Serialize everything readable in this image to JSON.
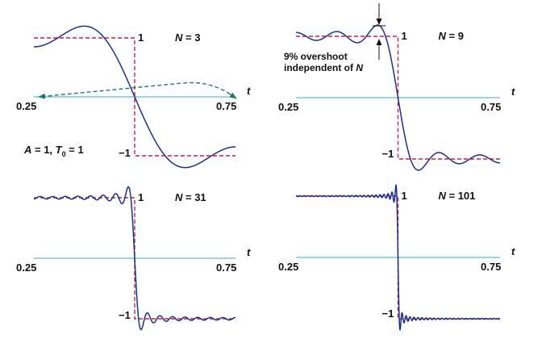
{
  "colors": {
    "approximation": "#1a2f8f",
    "square_wave": "#cc1a4a",
    "axis": "#3aa6c8",
    "arrow": "#1f7a6e"
  },
  "annotations": {
    "params_A": "A",
    "params_eq1": " = 1, ",
    "params_T": "T",
    "params_T_sub": "0",
    "params_eq2": " = 1",
    "overshoot_line1": "9% overshoot",
    "overshoot_line2_a": "independent of ",
    "overshoot_line2_b": "N"
  },
  "chart_data": [
    {
      "type": "line",
      "n_var": "N",
      "n_eq": " = 3",
      "N": 3,
      "xlabel": "t",
      "xlim": [
        0.25,
        0.75
      ],
      "ylim": [
        -1.2,
        1.2
      ],
      "x_tick_left": "0.25",
      "x_tick_right": "0.75",
      "level_high": "1",
      "level_low": "−1",
      "series": [
        {
          "kind": "fourier_partial_sum",
          "amplitude": 1,
          "period": 1,
          "harmonics": 3
        },
        {
          "kind": "square_wave",
          "amplitude": 1,
          "period": 1
        }
      ]
    },
    {
      "type": "line",
      "n_var": "N",
      "n_eq": " = 9",
      "N": 9,
      "xlabel": "t",
      "xlim": [
        0.25,
        0.75
      ],
      "ylim": [
        -1.2,
        1.2
      ],
      "x_tick_left": "0.25",
      "x_tick_right": "0.75",
      "level_high": "1",
      "level_low": "−1",
      "series": [
        {
          "kind": "fourier_partial_sum",
          "amplitude": 1,
          "period": 1,
          "harmonics": 9
        },
        {
          "kind": "square_wave",
          "amplitude": 1,
          "period": 1
        }
      ]
    },
    {
      "type": "line",
      "n_var": "N",
      "n_eq": " = 31",
      "N": 31,
      "xlabel": "t",
      "xlim": [
        0.25,
        0.75
      ],
      "ylim": [
        -1.2,
        1.2
      ],
      "x_tick_left": "0.25",
      "x_tick_right": "0.75",
      "level_high": "1",
      "level_low": "−1",
      "series": [
        {
          "kind": "fourier_partial_sum",
          "amplitude": 1,
          "period": 1,
          "harmonics": 31
        },
        {
          "kind": "square_wave",
          "amplitude": 1,
          "period": 1
        }
      ]
    },
    {
      "type": "line",
      "n_var": "N",
      "n_eq": " = 101",
      "N": 101,
      "xlabel": "t",
      "xlim": [
        0.25,
        0.75
      ],
      "ylim": [
        -1.2,
        1.2
      ],
      "x_tick_left": "0.25",
      "x_tick_right": "0.75",
      "level_high": "1",
      "level_low": "−1",
      "series": [
        {
          "kind": "fourier_partial_sum",
          "amplitude": 1,
          "period": 1,
          "harmonics": 101
        },
        {
          "kind": "square_wave",
          "amplitude": 1,
          "period": 1
        }
      ]
    }
  ]
}
